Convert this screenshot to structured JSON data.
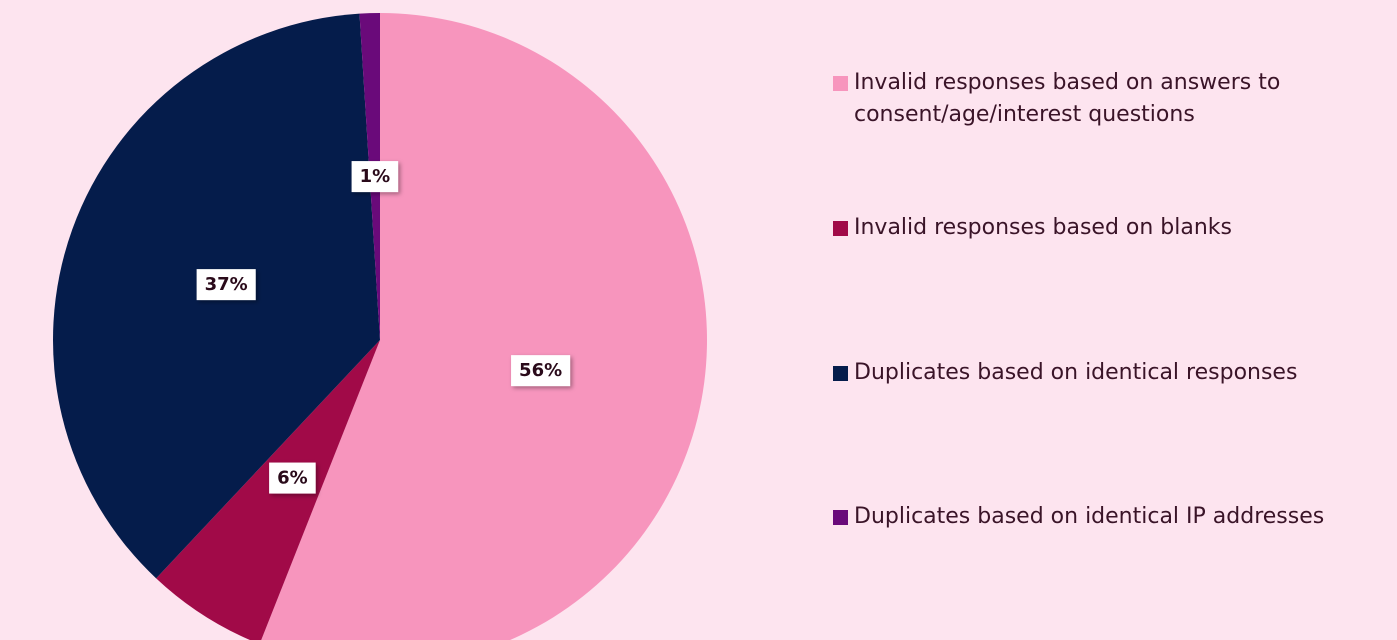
{
  "chart_data": {
    "type": "pie",
    "categories": [
      "Invalid responses based on answers to consent/age/interest questions",
      "Invalid responses based on blanks",
      "Duplicates based on identical responses",
      "Duplicates based on identical IP addresses"
    ],
    "values": [
      56,
      6,
      37,
      1
    ],
    "value_labels": [
      "56%",
      "6%",
      "37%",
      "1%"
    ],
    "colors": [
      "#f795bd",
      "#a10a48",
      "#051c4b",
      "#6a0a7a"
    ],
    "legend": "right"
  }
}
